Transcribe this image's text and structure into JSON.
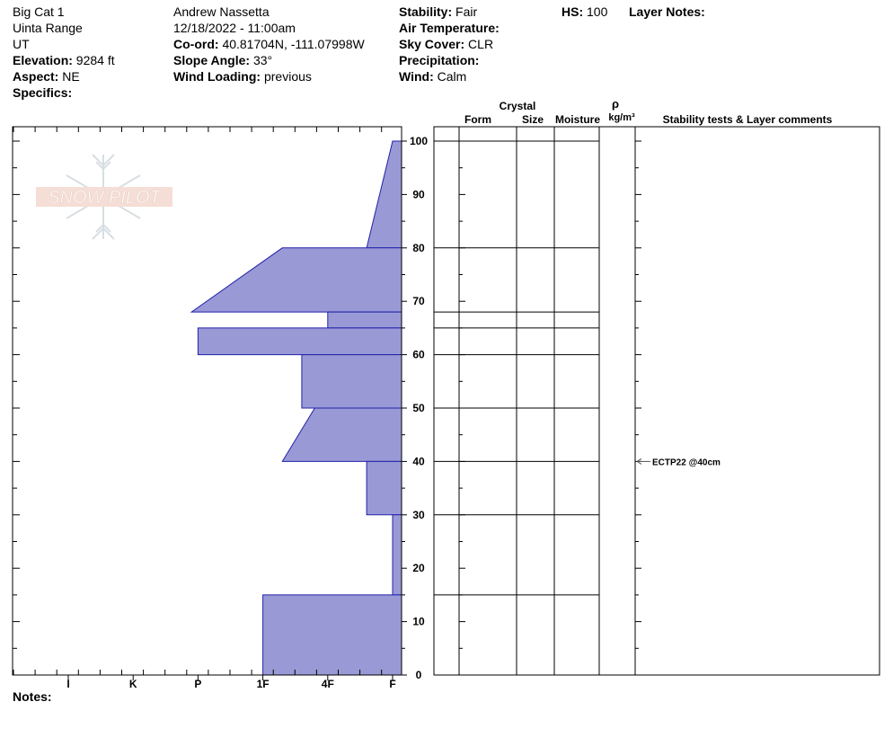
{
  "site": {
    "name": "Big Cat 1",
    "range": "Uinta Range",
    "state": "UT",
    "elevation_label": "Elevation:",
    "elevation_value": "9284 ft",
    "aspect_label": "Aspect:",
    "aspect_value": "NE",
    "specifics_label": "Specifics:"
  },
  "obs": {
    "observer": "Andrew Nassetta",
    "datetime": "12/18/2022 - 11:00am",
    "coord_label": "Co-ord:",
    "coord_value": "40.81704N, -111.07998W",
    "slope_label": "Slope Angle:",
    "slope_value": "33°",
    "wind_loading_label": "Wind Loading:",
    "wind_loading_value": "previous"
  },
  "conditions": {
    "stability_label": "Stability:",
    "stability_value": "Fair",
    "air_temp_label": "Air Temperature:",
    "sky_label": "Sky Cover:",
    "sky_value": "CLR",
    "precip_label": "Precipitation:",
    "wind_label": "Wind:",
    "wind_value": "Calm"
  },
  "hs": {
    "label": "HS:",
    "value": "100"
  },
  "layer_notes_label": "Layer Notes:",
  "notes_label": "Notes:",
  "logo_text": "SNOW PILOT",
  "columns": {
    "crystal": "Crystal",
    "form": "Form",
    "size": "Size",
    "moisture": "Moisture",
    "rho": "ρ",
    "density_unit": "kg/m³",
    "stability": "Stability tests & Layer comments"
  },
  "colors": {
    "hardness_fill": "#9999d6",
    "hardness_stroke": "#2222aa",
    "grid": "#000000"
  },
  "chart_data": {
    "type": "area",
    "x_axis": {
      "ticks": [
        "I",
        "K",
        "P",
        "1F",
        "4F",
        "F"
      ],
      "values": [
        6,
        5,
        4,
        3,
        2,
        1
      ]
    },
    "y_axis": {
      "range": [
        0,
        100
      ],
      "major_ticks": [
        0,
        10,
        20,
        30,
        40,
        50,
        60,
        70,
        80,
        90,
        100
      ]
    },
    "layers": [
      {
        "top": 100,
        "bottom": 80,
        "hardness_top": 1.0,
        "hardness_bottom": 1.4
      },
      {
        "top": 80,
        "bottom": 68,
        "hardness_top": 2.7,
        "hardness_bottom": 4.1
      },
      {
        "top": 68,
        "bottom": 65,
        "hardness_top": 2.0,
        "hardness_bottom": 2.0
      },
      {
        "top": 65,
        "bottom": 60,
        "hardness_top": 4.0,
        "hardness_bottom": 4.0
      },
      {
        "top": 60,
        "bottom": 50,
        "hardness_top": 2.4,
        "hardness_bottom": 2.4
      },
      {
        "top": 50,
        "bottom": 40,
        "hardness_top": 2.2,
        "hardness_bottom": 2.7
      },
      {
        "top": 40,
        "bottom": 30,
        "hardness_top": 1.4,
        "hardness_bottom": 1.4
      },
      {
        "top": 30,
        "bottom": 15,
        "hardness_top": 1.0,
        "hardness_bottom": 1.0
      },
      {
        "top": 15,
        "bottom": 0,
        "hardness_top": 3.0,
        "hardness_bottom": 3.0
      }
    ],
    "layer_boundaries": [
      100,
      80,
      68,
      65,
      60,
      50,
      40,
      30,
      15
    ],
    "annotations": [
      {
        "depth": 40,
        "text": "ECTP22 @40cm"
      }
    ]
  }
}
